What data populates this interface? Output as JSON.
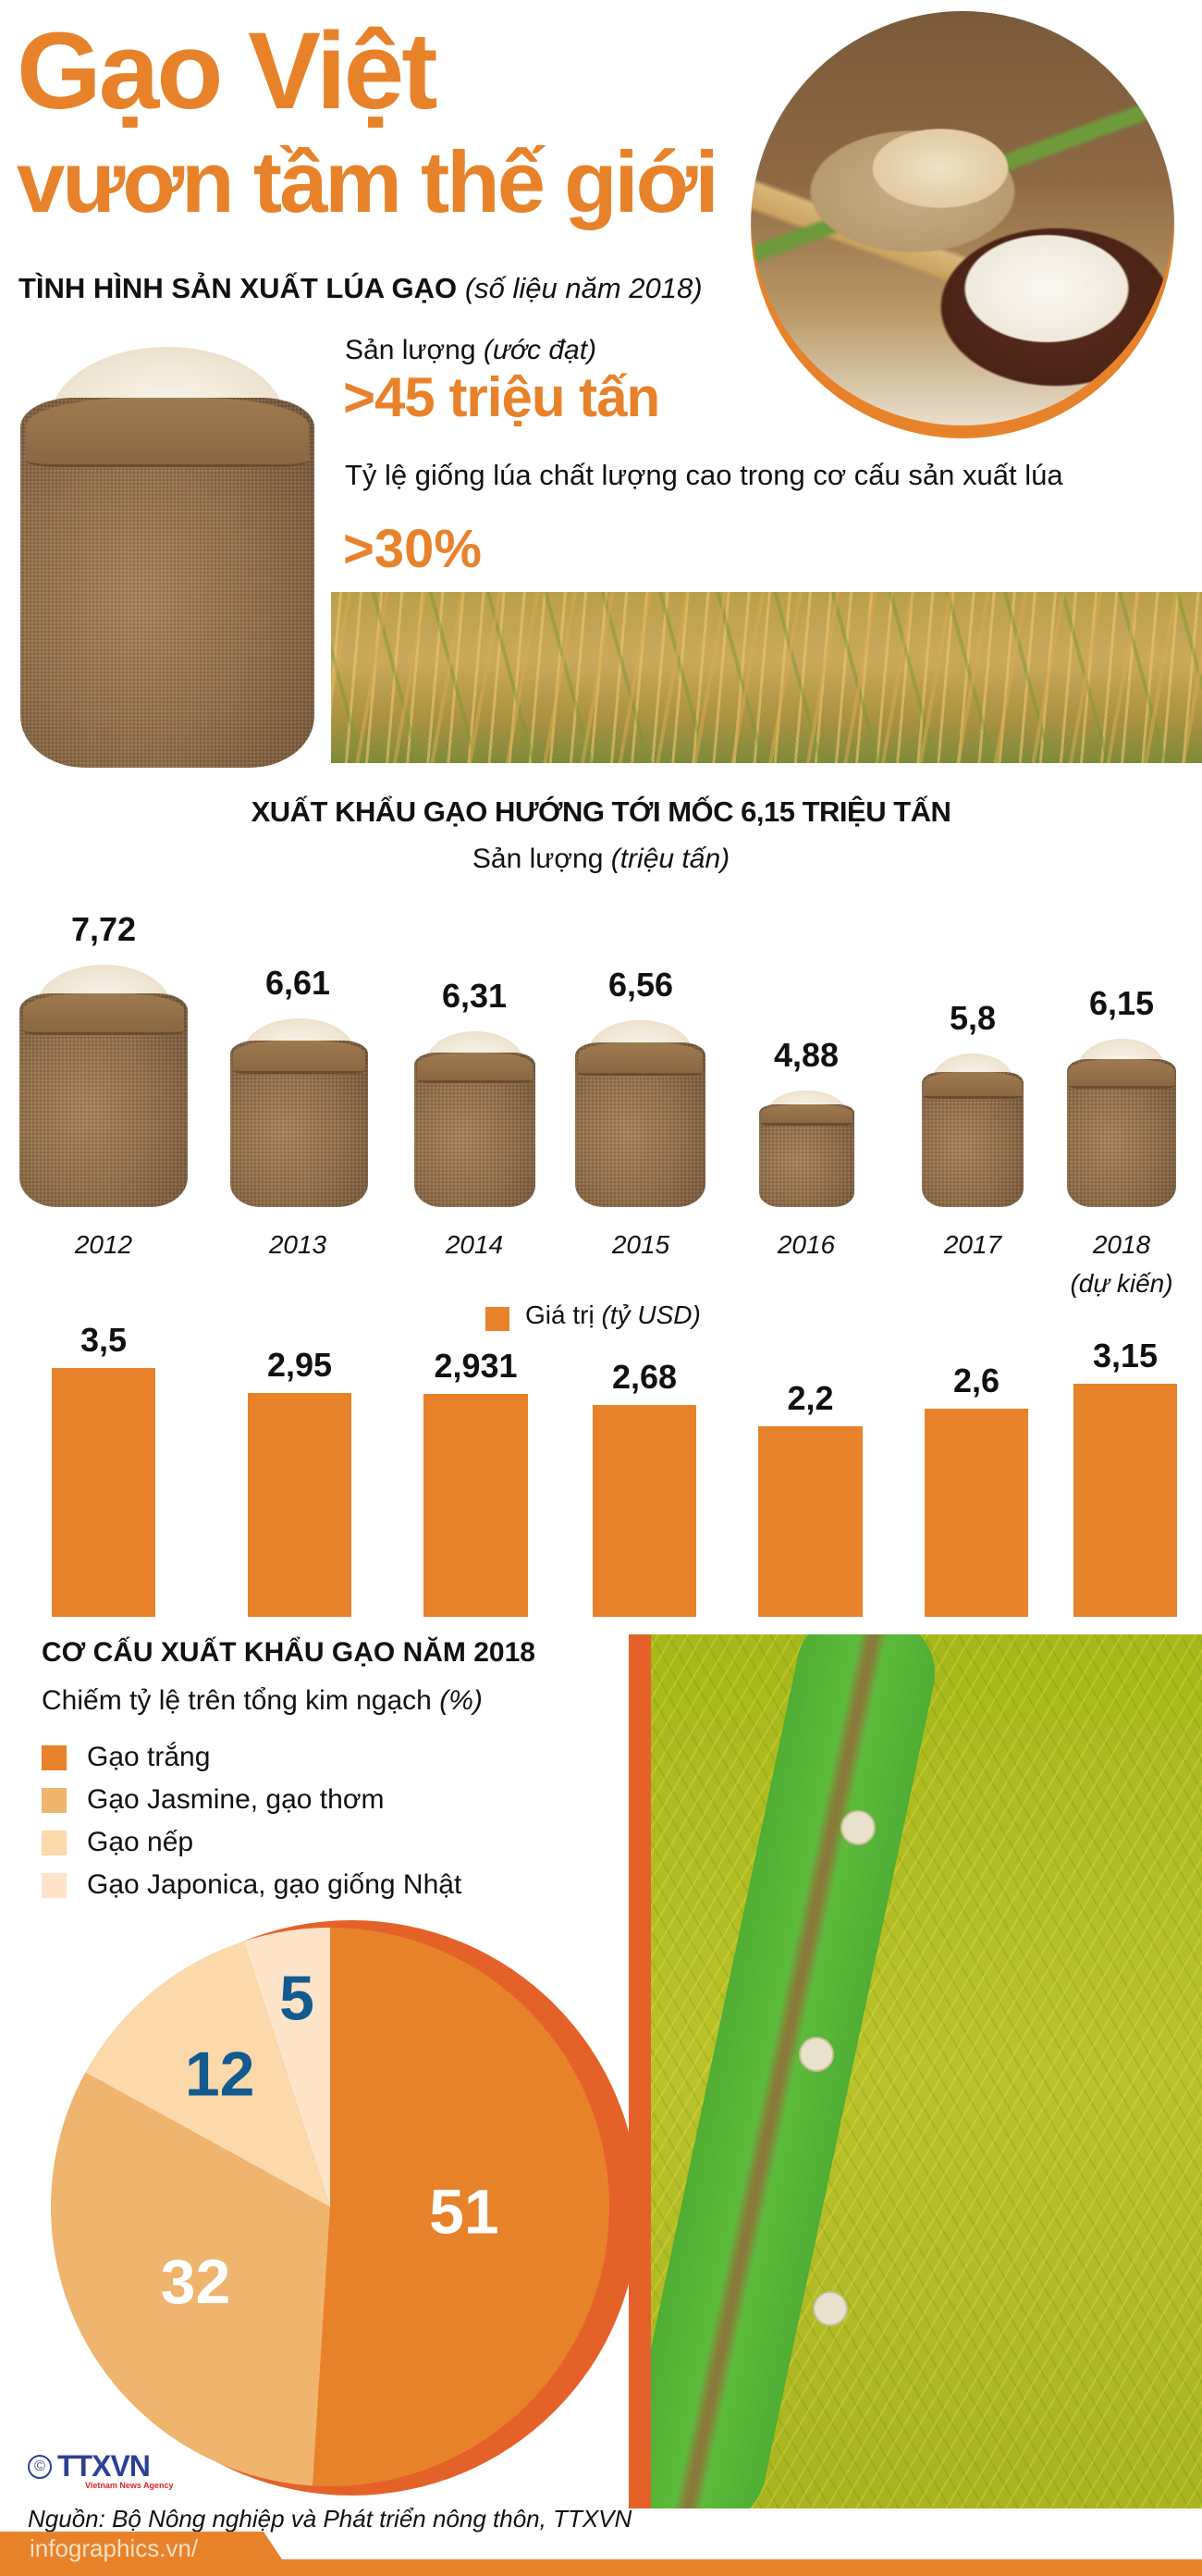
{
  "header": {
    "title_line1": "Gạo Việt",
    "title_line2": "vươn tầm thế giới"
  },
  "production": {
    "section_title": "TÌNH HÌNH SẢN XUẤT LÚA GẠO",
    "section_note": "(số liệu năm 2018)",
    "output_label": "Sản lượng",
    "output_label_note": "(ước đạt)",
    "output_value": ">45 triệu tấn",
    "quality_label": "Tỷ lệ giống lúa chất lượng cao trong cơ cấu sản xuất lúa",
    "quality_value": ">30%"
  },
  "exports": {
    "section_title": "XUẤT KHẨU GẠO HƯỚNG TỚI MỐC 6,15 TRIỆU TẤN",
    "volume_label": "Sản lượng",
    "volume_unit": "(triệu tấn)",
    "value_legend_label": "Giá trị",
    "value_legend_unit": "(tỷ USD)",
    "forecast_note": "(dự kiến)"
  },
  "structure": {
    "section_title": "CƠ CẤU XUẤT KHẨU GẠO NĂM 2018",
    "subtitle": "Chiếm tỷ lệ trên tổng kim ngạch",
    "subtitle_unit": "(%)",
    "legend": [
      {
        "label": "Gạo trắng",
        "color": "#e8822a"
      },
      {
        "label": "Gạo Jasmine, gạo thơm",
        "color": "#efb46e"
      },
      {
        "label": "Gạo nếp",
        "color": "#fbd9ab"
      },
      {
        "label": "Gạo Japonica, gạo giống Nhật",
        "color": "#fde4c8"
      }
    ]
  },
  "footer": {
    "logo_text": "TTXVN",
    "logo_copyright": "©",
    "logo_tagline": "Vietnam News Agency",
    "source": "Nguồn: Bộ Nông nghiệp và Phát triển nông thôn, TTXVN",
    "site": "infographics.vn/"
  },
  "colors": {
    "accent": "#e8822a",
    "accent_dark": "#e5612a",
    "label_blue": "#135a8f",
    "text": "#111111"
  },
  "chart_data": [
    {
      "type": "bar",
      "title": "XUẤT KHẨU GẠO HƯỚNG TỚI MỐC 6,15 TRIỆU TẤN — Sản lượng (triệu tấn)",
      "categories": [
        "2012",
        "2013",
        "2014",
        "2015",
        "2016",
        "2017",
        "2018 (dự kiến)"
      ],
      "values": [
        7.72,
        6.61,
        6.31,
        6.56,
        4.88,
        5.8,
        6.15
      ],
      "value_labels": [
        "7,72",
        "6,61",
        "6,31",
        "6,56",
        "4,88",
        "5,8",
        "6,15"
      ],
      "xlabel": "",
      "ylabel": "Sản lượng (triệu tấn)",
      "note": "pictogram: rice sack size scaled by value"
    },
    {
      "type": "bar",
      "title": "Giá trị (tỷ USD)",
      "categories": [
        "2012",
        "2013",
        "2014",
        "2015",
        "2016",
        "2017",
        "2018 (dự kiến)"
      ],
      "values": [
        3.5,
        2.95,
        2.931,
        2.68,
        2.2,
        2.6,
        3.15
      ],
      "value_labels": [
        "3,5",
        "2,95",
        "2,931",
        "2,68",
        "2,2",
        "2,6",
        "3,15"
      ],
      "legend": [
        "Giá trị (tỷ USD)"
      ],
      "ylabel": "Giá trị (tỷ USD)",
      "grid": false
    },
    {
      "type": "pie",
      "title": "CƠ CẤU XUẤT KHẨU GẠO NĂM 2018 — Chiếm tỷ lệ trên tổng kim ngạch (%)",
      "categories": [
        "Gạo trắng",
        "Gạo Jasmine, gạo thơm",
        "Gạo nếp",
        "Gạo Japonica, gạo giống Nhật"
      ],
      "values": [
        51,
        32,
        12,
        5
      ],
      "colors": [
        "#e8822a",
        "#efb46e",
        "#fbd9ab",
        "#fde4c8"
      ],
      "legend_position": "top-left"
    }
  ]
}
